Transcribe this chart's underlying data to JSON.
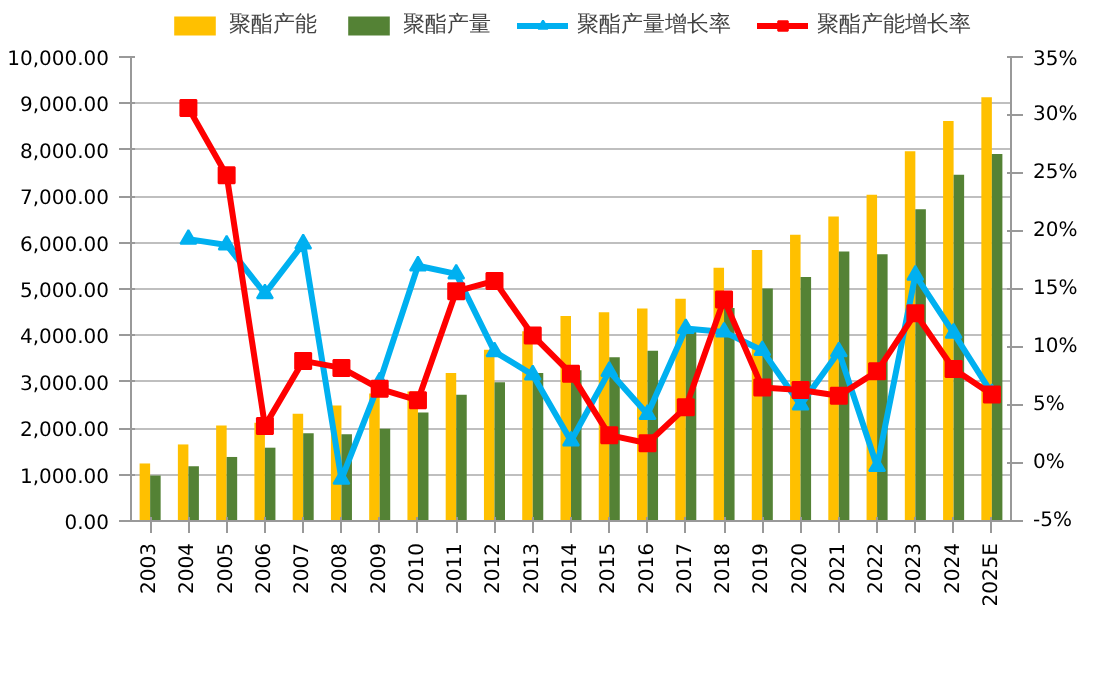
{
  "chart_data": {
    "type": "bar",
    "categories": [
      "2003",
      "2004",
      "2005",
      "2006",
      "2007",
      "2008",
      "2009",
      "2010",
      "2011",
      "2012",
      "2013",
      "2014",
      "2015",
      "2016",
      "2017",
      "2018",
      "2019",
      "2020",
      "2021",
      "2022",
      "2023",
      "2024",
      "2025E"
    ],
    "series": [
      {
        "name": "聚酯产能",
        "color": "#ffc000",
        "values": [
          1240,
          1650,
          2060,
          2120,
          2310,
          2490,
          2750,
          2790,
          3190,
          3690,
          4090,
          4420,
          4500,
          4580,
          4790,
          5460,
          5840,
          6170,
          6560,
          7030,
          7970,
          8620,
          9130
        ]
      },
      {
        "name": "聚酯产量",
        "color": "#548235",
        "values": [
          980,
          1180,
          1380,
          1580,
          1890,
          1870,
          1990,
          2340,
          2720,
          2990,
          3190,
          3250,
          3530,
          3670,
          4100,
          4590,
          5010,
          5260,
          5810,
          5750,
          6720,
          7460,
          7910
        ]
      },
      {
        "name": "聚酯产量增长率",
        "type": "line",
        "axis": "y2",
        "marker": "triangle",
        "color": "#00b0f0",
        "values": [
          null,
          19.3,
          18.8,
          14.6,
          18.9,
          -1.4,
          7.0,
          17.0,
          16.3,
          9.6,
          7.6,
          1.9,
          7.9,
          4.2,
          11.6,
          11.3,
          9.7,
          5.0,
          9.6,
          -0.3,
          16.2,
          11.2,
          6.0
        ]
      },
      {
        "name": "聚酯产能增长率",
        "type": "line",
        "axis": "y2",
        "marker": "square",
        "color": "#ff0000",
        "values": [
          null,
          30.6,
          24.8,
          3.2,
          8.8,
          8.2,
          6.4,
          5.4,
          14.8,
          15.7,
          11.0,
          7.7,
          2.4,
          1.7,
          4.8,
          14.1,
          6.5,
          6.3,
          5.8,
          7.9,
          12.9,
          8.1,
          5.9
        ]
      }
    ],
    "ylim": [
      0,
      10000
    ],
    "yticks": [
      {
        "value": 0,
        "label": "0.00"
      },
      {
        "value": 1000,
        "label": "1,000.00"
      },
      {
        "value": 2000,
        "label": "2,000.00"
      },
      {
        "value": 3000,
        "label": "3,000.00"
      },
      {
        "value": 4000,
        "label": "4,000.00"
      },
      {
        "value": 5000,
        "label": "5,000.00"
      },
      {
        "value": 6000,
        "label": "6,000.00"
      },
      {
        "value": 7000,
        "label": "7,000.00"
      },
      {
        "value": 8000,
        "label": "8,000.00"
      },
      {
        "value": 9000,
        "label": "9,000.00"
      },
      {
        "value": 10000,
        "label": "10,000.00"
      }
    ],
    "y2lim": [
      -5,
      35
    ],
    "y2ticks": [
      {
        "value": -5,
        "label": "-5%"
      },
      {
        "value": 0,
        "label": "0%"
      },
      {
        "value": 5,
        "label": "5%"
      },
      {
        "value": 10,
        "label": "10%"
      },
      {
        "value": 15,
        "label": "15%"
      },
      {
        "value": 20,
        "label": "20%"
      },
      {
        "value": 25,
        "label": "25%"
      },
      {
        "value": 30,
        "label": "30%"
      },
      {
        "value": 35,
        "label": "35%"
      }
    ],
    "grid": "y",
    "legend": "top"
  }
}
